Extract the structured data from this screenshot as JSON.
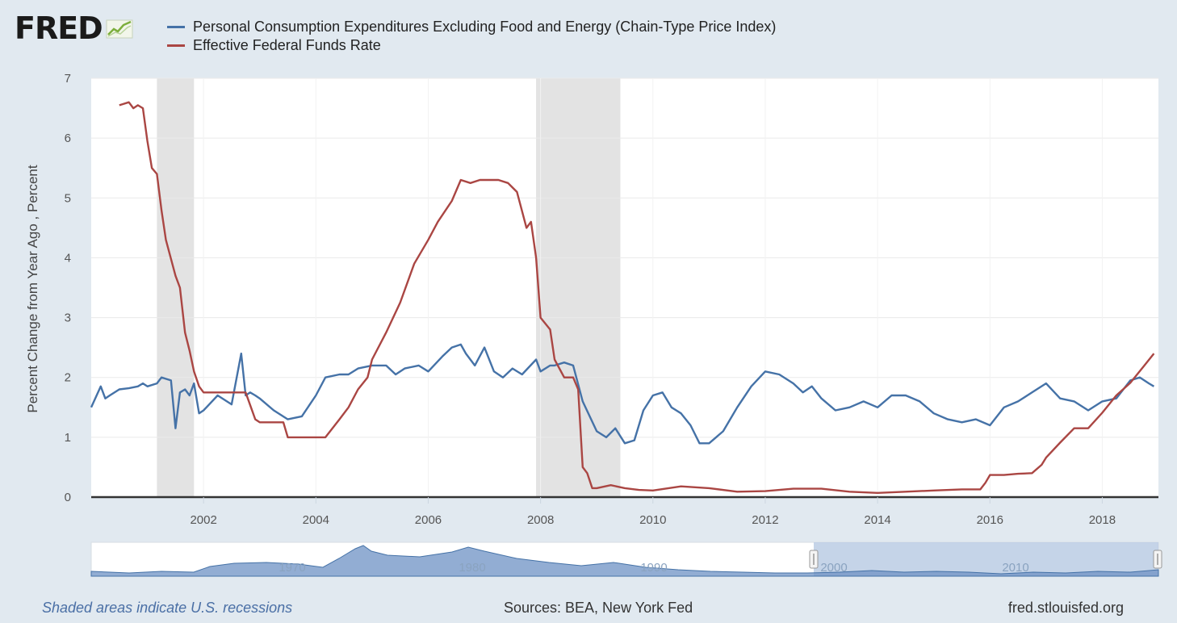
{
  "header": {
    "logo_text": "FRED",
    "logo_icon": "fred-line-graph-icon"
  },
  "legend": [
    {
      "label": "Personal Consumption Expenditures Excluding Food and Energy (Chain-Type Price Index)",
      "color": "#4572a7"
    },
    {
      "label": "Effective Federal Funds Rate",
      "color": "#aa4643"
    }
  ],
  "footer": {
    "recession_note": "Shaded areas indicate U.S. recessions",
    "sources": "Sources: BEA, New York Fed",
    "site": "fred.stlouisfed.org"
  },
  "navigator": {
    "labels": [
      "1970",
      "1980",
      "1990",
      "2000",
      "2010"
    ]
  },
  "chart_data": {
    "type": "line",
    "ylabel": "Percent Change from Year Ago , Percent",
    "xlabel": "",
    "xlim": [
      2000.0,
      2019.0
    ],
    "ylim": [
      0,
      7
    ],
    "yticks": [
      0,
      1,
      2,
      3,
      4,
      5,
      6,
      7
    ],
    "xticks": [
      2002,
      2004,
      2006,
      2008,
      2010,
      2012,
      2014,
      2016,
      2018
    ],
    "grid": true,
    "recessions": [
      [
        2001.17,
        2001.83
      ],
      [
        2007.92,
        2009.42
      ]
    ],
    "series": [
      {
        "name": "Personal Consumption Expenditures Excluding Food and Energy (Chain-Type Price Index)",
        "color": "#4572a7",
        "x": [
          2000.0,
          2000.17,
          2000.25,
          2000.33,
          2000.5,
          2000.67,
          2000.83,
          2000.92,
          2001.0,
          2001.17,
          2001.25,
          2001.42,
          2001.5,
          2001.58,
          2001.67,
          2001.75,
          2001.83,
          2001.92,
          2002.0,
          2002.25,
          2002.5,
          2002.67,
          2002.75,
          2002.83,
          2002.92,
          2003.0,
          2003.25,
          2003.5,
          2003.75,
          2004.0,
          2004.17,
          2004.42,
          2004.58,
          2004.75,
          2005.0,
          2005.25,
          2005.42,
          2005.58,
          2005.83,
          2006.0,
          2006.25,
          2006.42,
          2006.58,
          2006.67,
          2006.83,
          2007.0,
          2007.17,
          2007.33,
          2007.5,
          2007.67,
          2007.92,
          2008.0,
          2008.17,
          2008.25,
          2008.42,
          2008.58,
          2008.75,
          2009.0,
          2009.17,
          2009.33,
          2009.5,
          2009.67,
          2009.83,
          2010.0,
          2010.17,
          2010.33,
          2010.5,
          2010.67,
          2010.83,
          2011.0,
          2011.25,
          2011.5,
          2011.75,
          2012.0,
          2012.25,
          2012.5,
          2012.67,
          2012.83,
          2013.0,
          2013.25,
          2013.5,
          2013.75,
          2014.0,
          2014.25,
          2014.5,
          2014.75,
          2015.0,
          2015.25,
          2015.5,
          2015.75,
          2016.0,
          2016.25,
          2016.5,
          2016.75,
          2017.0,
          2017.25,
          2017.5,
          2017.75,
          2018.0,
          2018.25,
          2018.5,
          2018.67,
          2018.83,
          2018.92
        ],
        "y": [
          1.5,
          1.85,
          1.65,
          1.7,
          1.8,
          1.82,
          1.85,
          1.9,
          1.85,
          1.9,
          2.0,
          1.95,
          1.15,
          1.75,
          1.8,
          1.7,
          1.9,
          1.4,
          1.45,
          1.7,
          1.55,
          2.4,
          1.7,
          1.75,
          1.7,
          1.65,
          1.45,
          1.3,
          1.35,
          1.7,
          2.0,
          2.05,
          2.05,
          2.15,
          2.2,
          2.2,
          2.05,
          2.15,
          2.2,
          2.1,
          2.35,
          2.5,
          2.55,
          2.4,
          2.2,
          2.5,
          2.1,
          2.0,
          2.15,
          2.05,
          2.3,
          2.1,
          2.2,
          2.2,
          2.25,
          2.2,
          1.6,
          1.1,
          1.0,
          1.15,
          0.9,
          0.95,
          1.45,
          1.7,
          1.75,
          1.5,
          1.4,
          1.2,
          0.9,
          0.9,
          1.1,
          1.5,
          1.85,
          2.1,
          2.05,
          1.9,
          1.75,
          1.85,
          1.65,
          1.45,
          1.5,
          1.6,
          1.5,
          1.7,
          1.7,
          1.6,
          1.4,
          1.3,
          1.25,
          1.3,
          1.2,
          1.5,
          1.6,
          1.75,
          1.9,
          1.65,
          1.6,
          1.45,
          1.6,
          1.65,
          1.95,
          2.0,
          1.9,
          1.85
        ]
      },
      {
        "name": "Effective Federal Funds Rate",
        "color": "#aa4643",
        "x": [
          2000.5,
          2000.67,
          2000.75,
          2000.83,
          2000.92,
          2001.0,
          2001.08,
          2001.17,
          2001.25,
          2001.33,
          2001.5,
          2001.58,
          2001.67,
          2001.75,
          2001.83,
          2001.92,
          2002.0,
          2002.25,
          2002.5,
          2002.75,
          2002.92,
          2003.0,
          2003.25,
          2003.42,
          2003.5,
          2003.67,
          2003.92,
          2004.17,
          2004.42,
          2004.58,
          2004.75,
          2004.92,
          2005.0,
          2005.25,
          2005.5,
          2005.75,
          2006.0,
          2006.17,
          2006.42,
          2006.58,
          2006.75,
          2006.92,
          2007.0,
          2007.25,
          2007.42,
          2007.58,
          2007.75,
          2007.83,
          2007.92,
          2008.0,
          2008.17,
          2008.25,
          2008.42,
          2008.58,
          2008.67,
          2008.75,
          2008.83,
          2008.92,
          2009.0,
          2009.25,
          2009.5,
          2009.75,
          2010.0,
          2010.5,
          2011.0,
          2011.5,
          2012.0,
          2012.5,
          2013.0,
          2013.5,
          2014.0,
          2014.5,
          2015.0,
          2015.5,
          2015.83,
          2015.92,
          2016.0,
          2016.25,
          2016.5,
          2016.75,
          2016.92,
          2017.0,
          2017.25,
          2017.5,
          2017.75,
          2018.0,
          2018.25,
          2018.5,
          2018.75,
          2018.92
        ],
        "y": [
          6.55,
          6.6,
          6.5,
          6.55,
          6.5,
          5.95,
          5.5,
          5.4,
          4.8,
          4.3,
          3.7,
          3.5,
          2.75,
          2.45,
          2.1,
          1.85,
          1.75,
          1.75,
          1.75,
          1.75,
          1.3,
          1.25,
          1.25,
          1.25,
          1.0,
          1.0,
          1.0,
          1.0,
          1.3,
          1.5,
          1.8,
          2.0,
          2.3,
          2.75,
          3.25,
          3.9,
          4.3,
          4.6,
          4.95,
          5.3,
          5.25,
          5.3,
          5.3,
          5.3,
          5.25,
          5.1,
          4.5,
          4.6,
          4.0,
          3.0,
          2.8,
          2.3,
          2.0,
          2.0,
          1.8,
          0.5,
          0.4,
          0.15,
          0.15,
          0.2,
          0.15,
          0.12,
          0.11,
          0.18,
          0.15,
          0.09,
          0.1,
          0.14,
          0.14,
          0.09,
          0.07,
          0.09,
          0.11,
          0.13,
          0.13,
          0.24,
          0.37,
          0.37,
          0.39,
          0.4,
          0.54,
          0.66,
          0.91,
          1.15,
          1.15,
          1.41,
          1.7,
          1.91,
          2.2,
          2.4
        ]
      }
    ]
  }
}
